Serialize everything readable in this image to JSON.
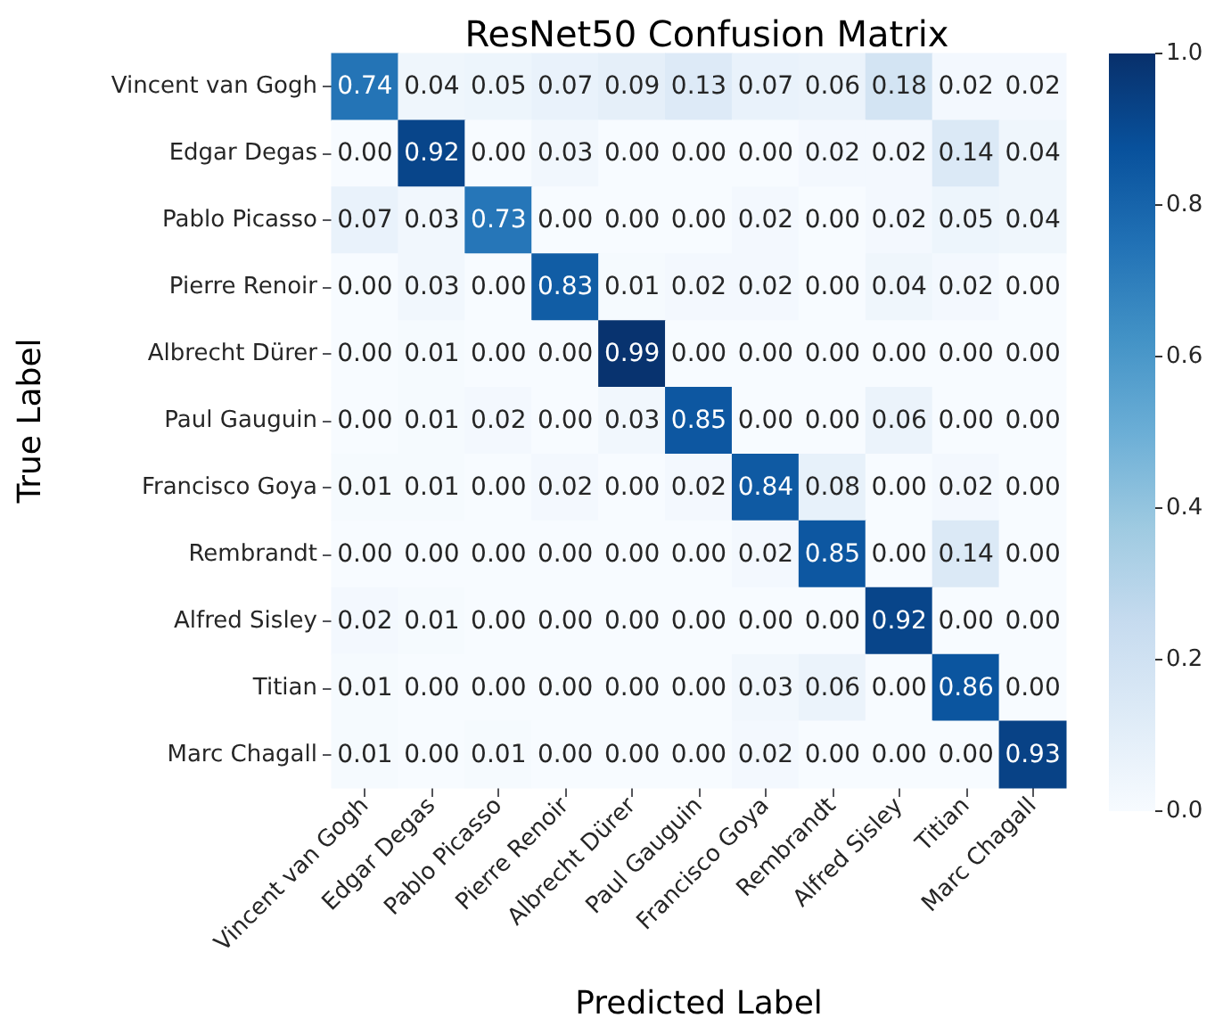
{
  "chart_data": {
    "type": "heatmap",
    "title": "ResNet50 Confusion Matrix",
    "xlabel": "Predicted Label",
    "ylabel": "True Label",
    "categories": [
      "Vincent van Gogh",
      "Edgar Degas",
      "Pablo Picasso",
      "Pierre Renoir",
      "Albrecht Dürer",
      "Paul Gauguin",
      "Francisco Goya",
      "Rembrandt",
      "Alfred Sisley",
      "Titian",
      "Marc Chagall"
    ],
    "y_categories": [
      "Vincent van Gogh",
      "Edgar Degas",
      "Pablo Picasso",
      "Pierre Renoir",
      "Albrecht Dürer",
      "Paul Gauguin",
      "Francisco Goya",
      "Rembrandt",
      "Alfred Sisley",
      "Titian",
      "Marc Chagall"
    ],
    "cells": [
      [
        0.74,
        0.04,
        0.05,
        0.07,
        0.09,
        0.13,
        0.07,
        0.06,
        0.18,
        0.02,
        0.02
      ],
      [
        0.0,
        0.92,
        0.0,
        0.03,
        0.0,
        0.0,
        0.0,
        0.02,
        0.02,
        0.14,
        0.04
      ],
      [
        0.07,
        0.03,
        0.73,
        0.0,
        0.0,
        0.0,
        0.02,
        0.0,
        0.02,
        0.05,
        0.04
      ],
      [
        0.0,
        0.03,
        0.0,
        0.83,
        0.01,
        0.02,
        0.02,
        0.0,
        0.04,
        0.02,
        0.0
      ],
      [
        0.0,
        0.01,
        0.0,
        0.0,
        0.99,
        0.0,
        0.0,
        0.0,
        0.0,
        0.0,
        0.0
      ],
      [
        0.0,
        0.01,
        0.02,
        0.0,
        0.03,
        0.85,
        0.0,
        0.0,
        0.06,
        0.0,
        0.0
      ],
      [
        0.01,
        0.01,
        0.0,
        0.02,
        0.0,
        0.02,
        0.84,
        0.08,
        0.0,
        0.02,
        0.0
      ],
      [
        0.0,
        0.0,
        0.0,
        0.0,
        0.0,
        0.0,
        0.02,
        0.85,
        0.0,
        0.14,
        0.0
      ],
      [
        0.02,
        0.01,
        0.0,
        0.0,
        0.0,
        0.0,
        0.0,
        0.0,
        0.92,
        0.0,
        0.0
      ],
      [
        0.01,
        0.0,
        0.0,
        0.0,
        0.0,
        0.0,
        0.03,
        0.06,
        0.0,
        0.86,
        0.0
      ],
      [
        0.01,
        0.0,
        0.01,
        0.0,
        0.0,
        0.0,
        0.02,
        0.0,
        0.0,
        0.0,
        0.93
      ]
    ],
    "cell_labels": [
      [
        "0.74",
        "0.04",
        "0.05",
        "0.07",
        "0.09",
        "0.13",
        "0.07",
        "0.06",
        "0.18",
        "0.02",
        "0.02"
      ],
      [
        "0.00",
        "0.92",
        "0.00",
        "0.03",
        "0.00",
        "0.00",
        "0.00",
        "0.02",
        "0.02",
        "0.14",
        "0.04"
      ],
      [
        "0.07",
        "0.03",
        "0.73",
        "0.00",
        "0.00",
        "0.00",
        "0.02",
        "0.00",
        "0.02",
        "0.05",
        "0.04"
      ],
      [
        "0.00",
        "0.03",
        "0.00",
        "0.83",
        "0.01",
        "0.02",
        "0.02",
        "0.00",
        "0.04",
        "0.02",
        "0.00"
      ],
      [
        "0.00",
        "0.01",
        "0.00",
        "0.00",
        "0.99",
        "0.00",
        "0.00",
        "0.00",
        "0.00",
        "0.00",
        "0.00"
      ],
      [
        "0.00",
        "0.01",
        "0.02",
        "0.00",
        "0.03",
        "0.85",
        "0.00",
        "0.00",
        "0.06",
        "0.00",
        "0.00"
      ],
      [
        "0.01",
        "0.01",
        "0.00",
        "0.02",
        "0.00",
        "0.02",
        "0.84",
        "0.08",
        "0.00",
        "0.02",
        "0.00"
      ],
      [
        "0.00",
        "0.00",
        "0.00",
        "0.00",
        "0.00",
        "0.00",
        "0.02",
        "0.85",
        "0.00",
        "0.14",
        "0.00"
      ],
      [
        "0.02",
        "0.01",
        "0.00",
        "0.00",
        "0.00",
        "0.00",
        "0.00",
        "0.00",
        "0.92",
        "0.00",
        "0.00"
      ],
      [
        "0.01",
        "0.00",
        "0.00",
        "0.00",
        "0.00",
        "0.00",
        "0.03",
        "0.06",
        "0.00",
        "0.86",
        "0.00"
      ],
      [
        "0.01",
        "0.00",
        "0.01",
        "0.00",
        "0.00",
        "0.00",
        "0.02",
        "0.00",
        "0.00",
        "0.00",
        "0.93"
      ]
    ],
    "clim": [
      0,
      1
    ],
    "cticks": [
      {
        "value": 0,
        "label": "0.0"
      },
      {
        "value": 0.2,
        "label": "0.2"
      },
      {
        "value": 0.4,
        "label": "0.4"
      },
      {
        "value": 0.6,
        "label": "0.6"
      },
      {
        "value": 0.8,
        "label": "0.8"
      },
      {
        "value": 1,
        "label": "1.0"
      }
    ]
  }
}
